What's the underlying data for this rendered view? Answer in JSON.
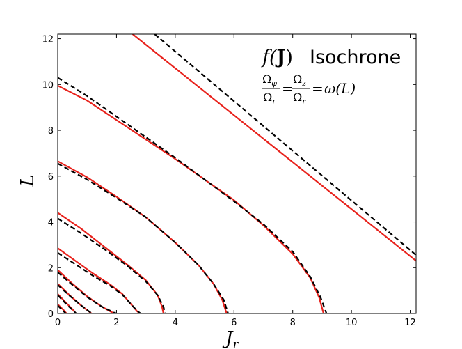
{
  "chart_data": {
    "type": "line",
    "title": "Isochrone",
    "xlabel": "J",
    "xlabel_sub": "r",
    "ylabel": "L",
    "xlim": [
      0,
      12.2
    ],
    "ylim": [
      0,
      12.2
    ],
    "xticks": [
      0,
      2,
      4,
      6,
      8,
      10,
      12
    ],
    "yticks": [
      0,
      2,
      4,
      6,
      8,
      10,
      12
    ],
    "grid": false,
    "annotation": {
      "title_math_prefix": "f(",
      "title_math_bold": "J",
      "title_math_suffix": ")",
      "title_word": "Isochrone",
      "frac1_num": "Ω",
      "frac1_num_sub": "φ",
      "frac1_den": "Ω",
      "frac1_den_sub": "r",
      "frac2_num": "Ω",
      "frac2_num_sub": "z",
      "frac2_den": "Ω",
      "frac2_den_sub": "r",
      "equals": "=",
      "rhs": "ω(L)"
    },
    "colors": {
      "solid": "#e8221c",
      "dashed": "#000000"
    },
    "series": [
      {
        "style": "solid",
        "points": [
          [
            0,
            0.4
          ],
          [
            0.2,
            0.15
          ],
          [
            0.3,
            0
          ]
        ]
      },
      {
        "style": "solid",
        "points": [
          [
            0,
            0.85
          ],
          [
            0.3,
            0.45
          ],
          [
            0.55,
            0.12
          ],
          [
            0.62,
            0
          ]
        ]
      },
      {
        "style": "solid",
        "points": [
          [
            0,
            1.3
          ],
          [
            0.4,
            0.8
          ],
          [
            0.8,
            0.35
          ],
          [
            1.1,
            0.05
          ],
          [
            1.15,
            0
          ]
        ]
      },
      {
        "style": "solid",
        "points": [
          [
            0,
            1.9
          ],
          [
            0.5,
            1.3
          ],
          [
            1.0,
            0.75
          ],
          [
            1.5,
            0.3
          ],
          [
            1.85,
            0.05
          ],
          [
            1.95,
            0
          ]
        ]
      },
      {
        "style": "solid",
        "points": [
          [
            0,
            2.85
          ],
          [
            0.6,
            2.3
          ],
          [
            1.2,
            1.75
          ],
          [
            1.8,
            1.25
          ],
          [
            2.2,
            0.85
          ],
          [
            2.5,
            0.4
          ],
          [
            2.7,
            0.1
          ],
          [
            2.8,
            0
          ]
        ]
      },
      {
        "style": "solid",
        "points": [
          [
            0,
            4.4
          ],
          [
            0.8,
            3.7
          ],
          [
            1.6,
            2.9
          ],
          [
            2.4,
            2.1
          ],
          [
            3.0,
            1.45
          ],
          [
            3.4,
            0.8
          ],
          [
            3.55,
            0.3
          ],
          [
            3.6,
            0
          ]
        ]
      },
      {
        "style": "solid",
        "points": [
          [
            0,
            6.65
          ],
          [
            1.0,
            5.95
          ],
          [
            2.0,
            5.1
          ],
          [
            3.0,
            4.2
          ],
          [
            4.0,
            3.1
          ],
          [
            4.8,
            2.1
          ],
          [
            5.3,
            1.3
          ],
          [
            5.6,
            0.6
          ],
          [
            5.75,
            0
          ]
        ]
      },
      {
        "style": "solid",
        "points": [
          [
            0,
            9.95
          ],
          [
            1.0,
            9.3
          ],
          [
            2.0,
            8.45
          ],
          [
            3.0,
            7.6
          ],
          [
            4.0,
            6.75
          ],
          [
            5.0,
            5.85
          ],
          [
            6.0,
            4.95
          ],
          [
            7.0,
            3.85
          ],
          [
            8.0,
            2.6
          ],
          [
            8.6,
            1.55
          ],
          [
            8.9,
            0.7
          ],
          [
            9.05,
            0
          ]
        ]
      },
      {
        "style": "solid",
        "points": [
          [
            2.55,
            12.2
          ],
          [
            12.2,
            2.3
          ]
        ]
      },
      {
        "style": "dashed",
        "points": [
          [
            0,
            0.35
          ],
          [
            0.18,
            0.12
          ],
          [
            0.28,
            0
          ]
        ]
      },
      {
        "style": "dashed",
        "points": [
          [
            0,
            0.8
          ],
          [
            0.3,
            0.4
          ],
          [
            0.55,
            0.1
          ],
          [
            0.63,
            0
          ]
        ]
      },
      {
        "style": "dashed",
        "points": [
          [
            0,
            1.25
          ],
          [
            0.4,
            0.78
          ],
          [
            0.8,
            0.35
          ],
          [
            1.1,
            0.06
          ],
          [
            1.18,
            0
          ]
        ]
      },
      {
        "style": "dashed",
        "points": [
          [
            0,
            1.8
          ],
          [
            0.5,
            1.25
          ],
          [
            1.0,
            0.72
          ],
          [
            1.5,
            0.3
          ],
          [
            1.9,
            0.05
          ],
          [
            2.0,
            0
          ]
        ]
      },
      {
        "style": "dashed",
        "points": [
          [
            0,
            2.65
          ],
          [
            0.6,
            2.15
          ],
          [
            1.2,
            1.65
          ],
          [
            1.8,
            1.2
          ],
          [
            2.2,
            0.82
          ],
          [
            2.5,
            0.4
          ],
          [
            2.7,
            0.12
          ],
          [
            2.82,
            0
          ]
        ]
      },
      {
        "style": "dashed",
        "points": [
          [
            0,
            4.15
          ],
          [
            0.8,
            3.5
          ],
          [
            1.6,
            2.8
          ],
          [
            2.4,
            2.05
          ],
          [
            3.0,
            1.4
          ],
          [
            3.4,
            0.8
          ],
          [
            3.6,
            0.3
          ],
          [
            3.65,
            0
          ]
        ]
      },
      {
        "style": "dashed",
        "points": [
          [
            0,
            6.55
          ],
          [
            1.0,
            5.85
          ],
          [
            2.0,
            5.05
          ],
          [
            3.0,
            4.2
          ],
          [
            4.0,
            3.1
          ],
          [
            4.8,
            2.1
          ],
          [
            5.3,
            1.3
          ],
          [
            5.65,
            0.6
          ],
          [
            5.8,
            0
          ]
        ]
      },
      {
        "style": "dashed",
        "points": [
          [
            0,
            10.3
          ],
          [
            1.0,
            9.5
          ],
          [
            2.0,
            8.6
          ],
          [
            3.0,
            7.7
          ],
          [
            4.0,
            6.8
          ],
          [
            5.0,
            5.85
          ],
          [
            6.0,
            4.9
          ],
          [
            7.0,
            3.9
          ],
          [
            8.0,
            2.7
          ],
          [
            8.6,
            1.6
          ],
          [
            8.95,
            0.7
          ],
          [
            9.15,
            0
          ]
        ]
      },
      {
        "style": "dashed",
        "points": [
          [
            3.3,
            12.2
          ],
          [
            12.2,
            2.55
          ]
        ]
      }
    ]
  }
}
